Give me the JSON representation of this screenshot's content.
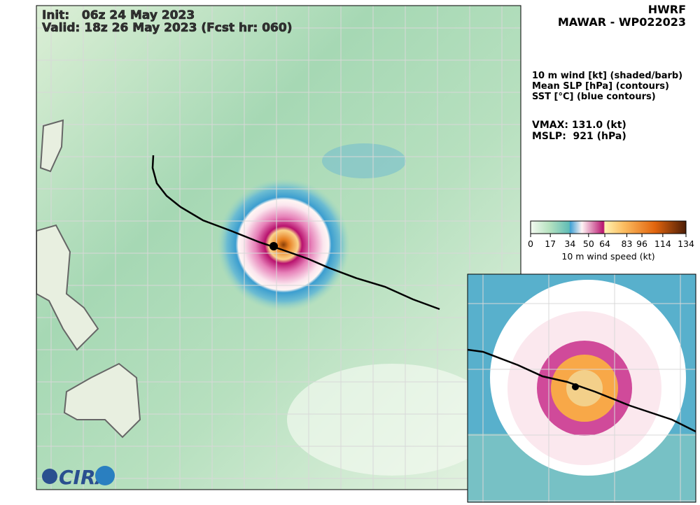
{
  "header": {
    "init": "Init:   06z 24 May 2023",
    "valid": "Valid: 18z 26 May 2023 (Fcst hr: 060)",
    "model": "HWRF",
    "storm": "MAWAR - WP022023"
  },
  "legend": {
    "lines": [
      "10 m wind [kt] (shaded/barb)",
      "Mean SLP [hPa] (contours)",
      "SST [°C] (blue contours)"
    ],
    "vmax": "VMAX: 131.0 (kt)",
    "mslp": "MSLP:  921 (hPa)"
  },
  "colorbar": {
    "range": [
      0,
      134
    ],
    "ticks": [
      0,
      17,
      34,
      50,
      64,
      83,
      96,
      114,
      134
    ],
    "label": "10 m wind speed (kt)"
  },
  "logo": "CIRA"
}
